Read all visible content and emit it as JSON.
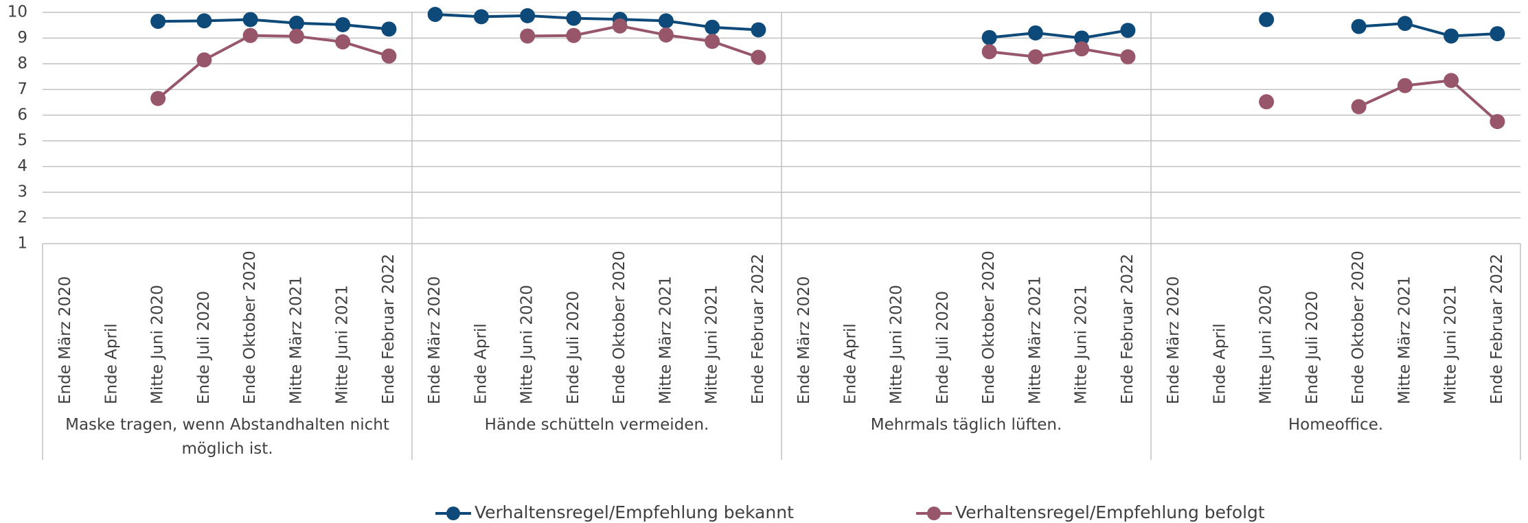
{
  "chart_data": {
    "type": "line",
    "groups": [
      {
        "label": "Maske tragen, wenn Abstandhalten nicht möglich ist.",
        "categories": [
          "Ende März 2020",
          "Ende April",
          "Mitte Juni 2020",
          "Ende Juli 2020",
          "Ende Oktober 2020",
          "Mitte März 2021",
          "Mitte Juni 2021",
          "Ende Februar 2022"
        ]
      },
      {
        "label": "Hände schütteln vermeiden.",
        "categories": [
          "Ende März 2020",
          "Ende April",
          "Mitte Juni 2020",
          "Ende Juli 2020",
          "Ende Oktober 2020",
          "Mitte März 2021",
          "Mitte Juni 2021",
          "Ende Februar 2022"
        ]
      },
      {
        "label": "Mehrmals täglich lüften.",
        "categories": [
          "Ende März 2020",
          "Ende April",
          "Mitte Juni 2020",
          "Ende Juli 2020",
          "Ende Oktober 2020",
          "Mitte März 2021",
          "Mitte Juni 2021",
          "Ende Februar 2022"
        ]
      },
      {
        "label": "Homeoffice.",
        "categories": [
          "Ende März 2020",
          "Ende April",
          "Mitte Juni 2020",
          "Ende Juli 2020",
          "Ende Oktober 2020",
          "Mitte März 2021",
          "Mitte Juni 2021",
          "Ende Februar 2022"
        ]
      }
    ],
    "series": [
      {
        "name": "Verhaltensregel/Empfehlung bekannt",
        "color": "#0d4a7a",
        "values": [
          null,
          null,
          9.65,
          9.67,
          9.72,
          9.58,
          9.52,
          9.35,
          9.92,
          9.83,
          9.87,
          9.77,
          9.73,
          9.67,
          9.42,
          9.32,
          null,
          null,
          null,
          null,
          9.02,
          9.2,
          9.0,
          9.3,
          null,
          null,
          9.72,
          null,
          9.45,
          9.57,
          9.08,
          9.17
        ]
      },
      {
        "name": "Verhaltensregel/Empfehlung befolgt",
        "color": "#98566b",
        "values": [
          null,
          null,
          6.65,
          8.15,
          9.1,
          9.07,
          8.85,
          8.3,
          null,
          null,
          9.08,
          9.1,
          9.47,
          9.12,
          8.87,
          8.25,
          null,
          null,
          null,
          null,
          8.47,
          8.27,
          8.58,
          8.27,
          null,
          null,
          6.52,
          null,
          6.33,
          7.15,
          7.35,
          5.75
        ]
      }
    ],
    "ylim": [
      1,
      10
    ],
    "yticks": [
      1,
      2,
      3,
      4,
      5,
      6,
      7,
      8,
      9,
      10
    ],
    "grid": true,
    "legend": "bottom"
  }
}
